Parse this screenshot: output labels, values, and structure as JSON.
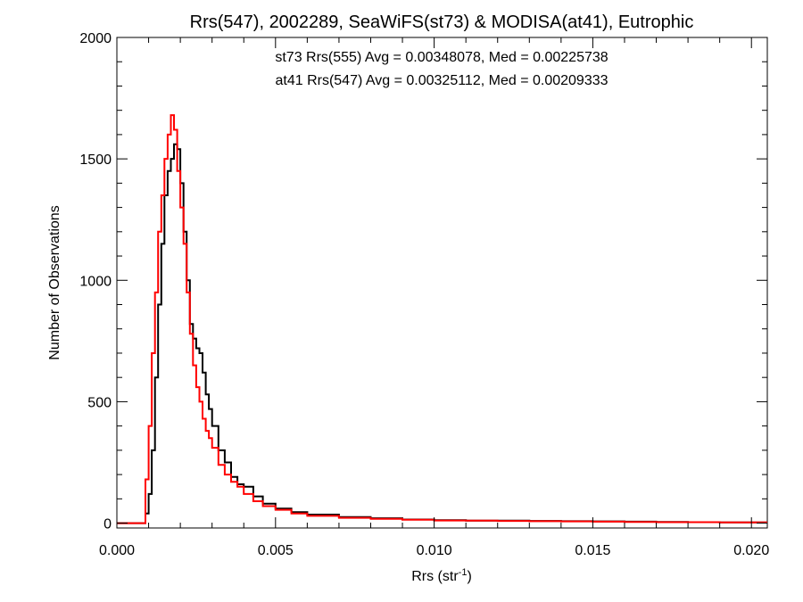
{
  "chart_data": {
    "type": "histogram",
    "title": "Rrs(547), 2002289, SeaWiFS(st73) & MODISA(at41), Eutrophic",
    "xlabel": "Rrs (str",
    "xlabel_sup": "-1",
    "xlabel_close": ")",
    "ylabel": "Number of Observations",
    "xlim": [
      0.0,
      0.0205
    ],
    "ylim": [
      -20,
      2000
    ],
    "xticks": [
      0.0,
      0.005,
      0.01,
      0.015,
      0.02
    ],
    "xtick_labels": [
      "0.000",
      "0.005",
      "0.010",
      "0.015",
      "0.020"
    ],
    "yticks": [
      0,
      500,
      1000,
      1500,
      2000
    ],
    "ytick_labels": [
      "0",
      "500",
      "1000",
      "1500",
      "2000"
    ],
    "grid": false,
    "legend_position": "top-center",
    "annotations": [
      {
        "text": "st73 Rrs(555) Avg = 0.00348078, Med = 0.00225738",
        "color": "#000000"
      },
      {
        "text": "at41 Rrs(547) Avg = 0.00325112, Med = 0.00209333",
        "color": "#ff0000"
      }
    ],
    "series": [
      {
        "color": "#000000",
        "x": [
          0.0,
          0.0008,
          0.0009,
          0.001,
          0.0011,
          0.0012,
          0.0013,
          0.0014,
          0.0015,
          0.0016,
          0.0017,
          0.0018,
          0.0019,
          0.002,
          0.0021,
          0.0022,
          0.0023,
          0.0024,
          0.0025,
          0.0026,
          0.0027,
          0.0028,
          0.0029,
          0.003,
          0.0032,
          0.0034,
          0.0036,
          0.0038,
          0.004,
          0.0043,
          0.0046,
          0.005,
          0.0055,
          0.006,
          0.007,
          0.008,
          0.009,
          0.01,
          0.011,
          0.012,
          0.013,
          0.014,
          0.015,
          0.016,
          0.017,
          0.018,
          0.019,
          0.02,
          0.0205
        ],
        "values": [
          0,
          0,
          40,
          120,
          300,
          600,
          900,
          1150,
          1350,
          1450,
          1500,
          1560,
          1540,
          1400,
          1200,
          1000,
          820,
          760,
          720,
          700,
          620,
          530,
          470,
          400,
          300,
          250,
          190,
          160,
          150,
          110,
          80,
          60,
          45,
          35,
          25,
          20,
          15,
          12,
          10,
          10,
          9,
          8,
          7,
          6,
          5,
          4,
          3,
          3,
          3
        ]
      },
      {
        "color": "#ff0000",
        "x": [
          0.0,
          0.0008,
          0.0009,
          0.001,
          0.0011,
          0.0012,
          0.0013,
          0.0014,
          0.0015,
          0.0016,
          0.0017,
          0.0018,
          0.0019,
          0.002,
          0.0021,
          0.0022,
          0.0023,
          0.0024,
          0.0025,
          0.0026,
          0.0027,
          0.0028,
          0.0029,
          0.003,
          0.0032,
          0.0034,
          0.0036,
          0.0038,
          0.004,
          0.0043,
          0.0046,
          0.005,
          0.0055,
          0.006,
          0.007,
          0.008,
          0.009,
          0.01,
          0.011,
          0.012,
          0.013,
          0.014,
          0.015,
          0.016,
          0.017,
          0.018,
          0.019,
          0.02,
          0.0205
        ],
        "values": [
          0,
          0,
          180,
          400,
          700,
          950,
          1200,
          1350,
          1500,
          1600,
          1680,
          1620,
          1450,
          1300,
          1150,
          950,
          780,
          650,
          560,
          500,
          430,
          380,
          350,
          310,
          240,
          200,
          170,
          150,
          120,
          90,
          70,
          55,
          40,
          30,
          22,
          18,
          14,
          11,
          10,
          9,
          8,
          7,
          6,
          5,
          4,
          4,
          3,
          3,
          3
        ]
      }
    ]
  }
}
